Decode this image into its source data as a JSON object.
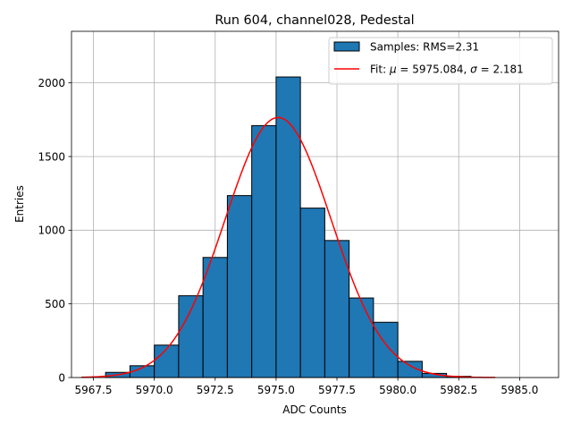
{
  "chart_data": {
    "type": "bar",
    "title": "Run 604, channel028, Pedestal",
    "xlabel": "ADC Counts",
    "ylabel": "Entries",
    "xlim": [
      5966.6,
      5986.6
    ],
    "ylim": [
      0,
      2350
    ],
    "grid": true,
    "legend_position": "top-right",
    "x_ticks": [
      5967.5,
      5970.0,
      5972.5,
      5975.0,
      5977.5,
      5980.0,
      5982.5,
      5985.0
    ],
    "x_tick_labels": [
      "5967.5",
      "5970.0",
      "5972.5",
      "5975.0",
      "5977.5",
      "5980.0",
      "5982.5",
      "5985.0"
    ],
    "y_ticks": [
      0,
      500,
      1000,
      1500,
      2000
    ],
    "y_tick_labels": [
      "0",
      "500",
      "1000",
      "1500",
      "2000"
    ],
    "histogram": {
      "name": "Samples: RMS=2.31",
      "color": "#1f77b4",
      "edge_color": "#000000",
      "bins": [
        {
          "left": 5968,
          "right": 5969,
          "count": 35
        },
        {
          "left": 5969,
          "right": 5970,
          "count": 80
        },
        {
          "left": 5970,
          "right": 5971,
          "count": 220
        },
        {
          "left": 5971,
          "right": 5972,
          "count": 555
        },
        {
          "left": 5972,
          "right": 5973,
          "count": 815
        },
        {
          "left": 5973,
          "right": 5974,
          "count": 1235
        },
        {
          "left": 5974,
          "right": 5975,
          "count": 1710
        },
        {
          "left": 5975,
          "right": 5976,
          "count": 2040
        },
        {
          "left": 5976,
          "right": 5977,
          "count": 1150
        },
        {
          "left": 5977,
          "right": 5978,
          "count": 930
        },
        {
          "left": 5978,
          "right": 5979,
          "count": 540
        },
        {
          "left": 5979,
          "right": 5980,
          "count": 375
        },
        {
          "left": 5980,
          "right": 5981,
          "count": 110
        },
        {
          "left": 5981,
          "right": 5982,
          "count": 28
        },
        {
          "left": 5982,
          "right": 5983,
          "count": 8
        }
      ]
    },
    "fit": {
      "name_prefix": "Fit: ",
      "mu_symbol": "μ",
      "mu_text": " = 5975.084, ",
      "sigma_symbol": "σ",
      "sigma_text": " = 2.181",
      "mu": 5975.084,
      "sigma": 2.181,
      "amplitude": 1765,
      "x_start": 5967.0,
      "x_end": 5984.0,
      "color": "#ff0000"
    }
  }
}
